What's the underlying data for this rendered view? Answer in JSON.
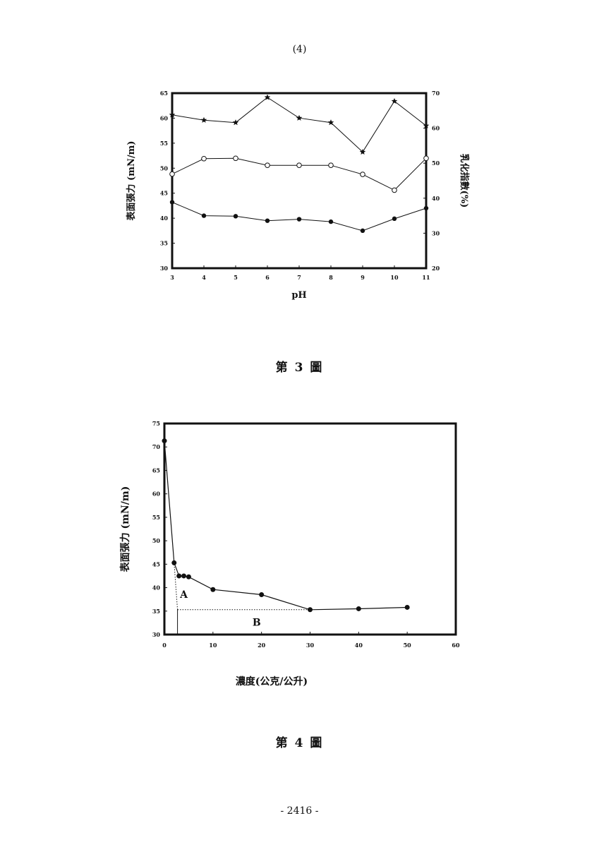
{
  "page": {
    "header": "(4)",
    "footer": "- 2416 -"
  },
  "figures": [
    {
      "caption": "第 3 圖"
    },
    {
      "caption": "第 4 圖"
    }
  ],
  "chart_data": [
    {
      "type": "line",
      "x": [
        3,
        4,
        5,
        6,
        7,
        8,
        9,
        10,
        11
      ],
      "xlabel": "pH",
      "ylabel": "表面張力 (mN/m)",
      "ylabel_right": "乳化指數(%)",
      "xlim": [
        3,
        11
      ],
      "ylim": [
        30,
        65
      ],
      "ylim_right": [
        20,
        70
      ],
      "x_ticks": [
        "3",
        "4",
        "5",
        "6",
        "7",
        "8",
        "9",
        "10",
        "11"
      ],
      "y_ticks": [
        "30",
        "35",
        "40",
        "45",
        "50",
        "55",
        "60",
        "65"
      ],
      "y_ticks_right": [
        "20",
        "30",
        "40",
        "50",
        "60",
        "70"
      ],
      "grid": false,
      "series": [
        {
          "marker": "star",
          "axis": "right",
          "values": [
            63.8,
            62.3,
            61.6,
            68.8,
            62.9,
            61.6,
            53.2,
            67.7,
            60.7
          ]
        },
        {
          "marker": "open-circle",
          "axis": "right",
          "values": [
            46.9,
            51.3,
            51.4,
            49.4,
            49.4,
            49.4,
            46.8,
            42.3,
            51.4
          ]
        },
        {
          "marker": "filled-circle",
          "axis": "left",
          "values": [
            43.2,
            40.5,
            40.4,
            39.5,
            39.8,
            39.3,
            37.5,
            39.9,
            42.0
          ]
        }
      ]
    },
    {
      "type": "line",
      "xlabel": "濃度(公克/公升)",
      "ylabel": "表面張力 (mN/m)",
      "xlim": [
        0,
        60
      ],
      "ylim": [
        30,
        75
      ],
      "x_ticks": [
        "0",
        "10",
        "20",
        "30",
        "40",
        "50",
        "60"
      ],
      "y_ticks": [
        "30",
        "35",
        "40",
        "45",
        "50",
        "55",
        "60",
        "65",
        "70",
        "75"
      ],
      "grid": false,
      "series": [
        {
          "marker": "filled-circle",
          "points": [
            [
              0,
              71.3
            ],
            [
              2,
              45.3
            ],
            [
              3,
              42.5
            ],
            [
              4,
              42.5
            ],
            [
              5,
              42.3
            ],
            [
              10,
              39.6
            ],
            [
              20,
              38.5
            ],
            [
              30,
              35.3
            ],
            [
              40,
              35.5
            ],
            [
              50,
              35.8
            ]
          ]
        }
      ],
      "annotations": [
        {
          "text": "A",
          "x": 4,
          "y": 38.6
        },
        {
          "text": "B",
          "x": 19,
          "y": 32.6
        }
      ],
      "guide_lines": {
        "vertical_x": 2.7,
        "horizontal_y": 35.3
      }
    }
  ]
}
